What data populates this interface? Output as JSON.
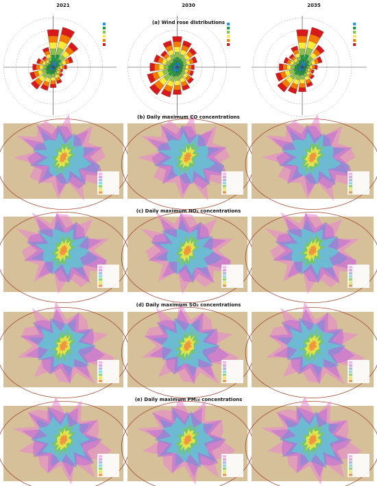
{
  "columns": [
    "2021",
    "2030",
    "2035"
  ],
  "sections": [
    "(a) Wind rose distributions",
    "(b) Daily maximum CO concentrations",
    "(c) Daily maximum NO₂ concentrations",
    "(d) Daily maximum SO₂ concentrations",
    "(e) Daily maximum PM₁₀ concentrations"
  ]
}
